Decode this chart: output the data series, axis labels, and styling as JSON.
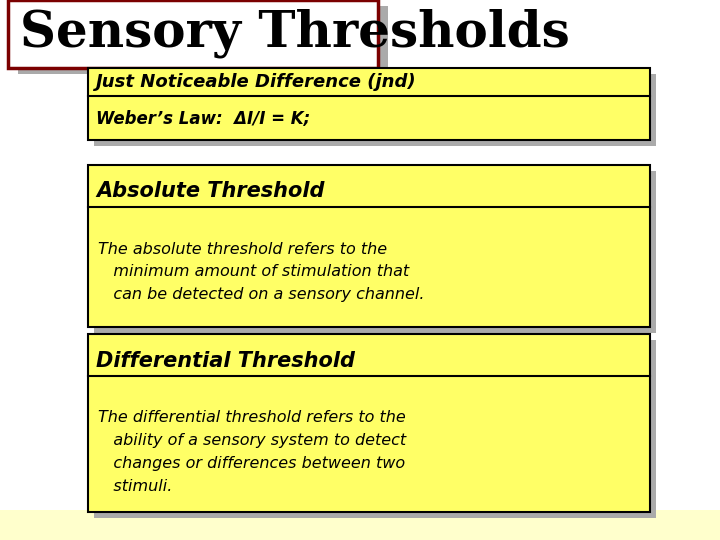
{
  "title": "Sensory Thresholds",
  "title_fontsize": 36,
  "title_bg": "#ffffff",
  "title_border": "#7b0000",
  "bg_color": "#ffffff",
  "bottom_color": "#ffffcc",
  "box_fill": "#ffff66",
  "box_border": "#000000",
  "shadow_color": "#aaaaaa",
  "jnd_title": "Just Noticeable Difference (jnd)",
  "jnd_subtitle": "Weber’s Law:  ΔI/I = K;",
  "abs_title": "Absolute Threshold",
  "abs_body": "The absolute threshold refers to the\n   minimum amount of stimulation that\n   can be detected on a sensory channel.",
  "diff_title": "Differential Threshold",
  "diff_body": "The differential threshold refers to the\n   ability of a sensory system to detect\n   changes or differences between two\n   stimuli."
}
